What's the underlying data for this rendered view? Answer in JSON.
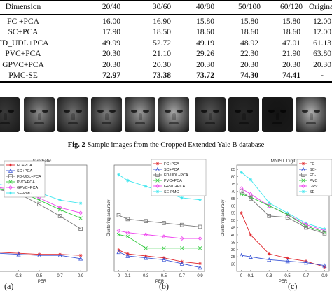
{
  "table": {
    "header": [
      "Dimension",
      "20/40",
      "30/60",
      "40/80",
      "50/100",
      "60/120",
      "Original"
    ],
    "rows": [
      {
        "method": "FC +PCA",
        "values": [
          "16.00",
          "16.90",
          "15.80",
          "15.80",
          "15.80",
          "12.00"
        ]
      },
      {
        "method": "SC+PCA",
        "values": [
          "17.90",
          "18.50",
          "18.60",
          "18.60",
          "18.60",
          "12.00"
        ]
      },
      {
        "method": "FD_UDL+PCA",
        "values": [
          "49.99",
          "52.72",
          "49.19",
          "48.92",
          "47.01",
          "61.13"
        ]
      },
      {
        "method": "PVC+PCA",
        "values": [
          "20.30",
          "21.10",
          "29.26",
          "22.30",
          "21.90",
          "63.80"
        ]
      },
      {
        "method": "GPVC+PCA",
        "values": [
          "20.30",
          "20.30",
          "20.30",
          "20.30",
          "20.30",
          "20.30"
        ]
      },
      {
        "method": "PMC-SE",
        "values": [
          "72.97",
          "73.38",
          "73.72",
          "74.30",
          "74.41",
          "-"
        ]
      }
    ]
  },
  "figure2": {
    "caption_label": "Fig. 2",
    "caption_text": " Sample images from the Cropped Extended Yale B database",
    "faces": [
      {
        "left": -14,
        "width": 42,
        "tone": "#3a3a3a"
      },
      {
        "left": 34,
        "width": 44,
        "tone": "#8a8a8a"
      },
      {
        "left": 82,
        "width": 44,
        "tone": "#6e6e6e"
      },
      {
        "left": 130,
        "width": 44,
        "tone": "#7c7c7c"
      },
      {
        "left": 178,
        "width": 44,
        "tone": "#9a9a9a"
      },
      {
        "left": 226,
        "width": 44,
        "tone": "#a8a8a8"
      },
      {
        "left": 278,
        "width": 44,
        "tone": "#555555"
      },
      {
        "left": 326,
        "width": 44,
        "tone": "#262626"
      },
      {
        "left": 374,
        "width": 44,
        "tone": "#141414"
      },
      {
        "left": 422,
        "width": 44,
        "tone": "#b0b0b0"
      }
    ]
  },
  "series_styles": {
    "FC+PCA": {
      "color": "#e0242a",
      "marker": "star"
    },
    "SC+PCA": {
      "color": "#3a55d6",
      "marker": "triangle"
    },
    "FD-UDL+PCA": {
      "color": "#777777",
      "marker": "square"
    },
    "PVC+PCA": {
      "color": "#2ec93a",
      "marker": "x"
    },
    "GPVC+PCA": {
      "color": "#ee44ee",
      "marker": "diamond"
    },
    "SE-PMC": {
      "color": "#3fe6ee",
      "marker": "star"
    }
  },
  "chart_data": [
    {
      "type": "line",
      "title": "Synthetic",
      "xlabel": "PER",
      "ylabel": "",
      "sub_label": "(a)",
      "x_ticks": [
        "0.3",
        "0.5",
        "0.7",
        "0.9"
      ],
      "x": [
        0.1,
        0.3,
        0.5,
        0.7,
        0.9
      ],
      "ylim": [
        0,
        100
      ],
      "legend": [
        "FC+PCA",
        "SC+PCA",
        "FD-UDL+PCA",
        "PVC+PCA",
        "GPVC+PCA",
        "SE-PMC"
      ],
      "series": [
        {
          "name": "SE-PMC",
          "values": [
            82,
            79,
            74,
            67,
            64
          ]
        },
        {
          "name": "GPVC+PCA",
          "values": [
            79,
            76,
            69,
            60,
            55
          ]
        },
        {
          "name": "PVC+PCA",
          "values": [
            78,
            75,
            67,
            58,
            50
          ]
        },
        {
          "name": "FD-UDL+PCA",
          "values": [
            77,
            73,
            63,
            52,
            40
          ]
        },
        {
          "name": "FC+PCA",
          "values": [
            18,
            17,
            16,
            16,
            15
          ]
        },
        {
          "name": "SC+PCA",
          "values": [
            17,
            16,
            15,
            15,
            12
          ]
        }
      ]
    },
    {
      "type": "line",
      "title": "Yale B",
      "xlabel": "PER",
      "ylabel": "Clustering accuracy",
      "sub_label": "(b)",
      "x_ticks": [
        "0",
        "0.1",
        "0.3",
        "0.5",
        "0.7",
        "0.9"
      ],
      "x": [
        0,
        0.1,
        0.3,
        0.5,
        0.7,
        0.9
      ],
      "ylim": [
        10,
        65
      ],
      "legend": [
        "FC+PCA",
        "SC+PCA",
        "FD-UDL+PCA",
        "PVC+PCA",
        "GPVC+PCA",
        "SE-PMC"
      ],
      "series": [
        {
          "name": "SE-PMC",
          "values": [
            60,
            57,
            54,
            51,
            48,
            47
          ]
        },
        {
          "name": "FD-UDL+PCA",
          "values": [
            39,
            37,
            36,
            35,
            34,
            33
          ]
        },
        {
          "name": "GPVC+PCA",
          "values": [
            31,
            30,
            29,
            28,
            27,
            27
          ]
        },
        {
          "name": "PVC+PCA",
          "values": [
            29,
            28,
            22,
            22,
            22,
            22
          ]
        },
        {
          "name": "FC+PCA",
          "values": [
            21,
            19,
            18,
            17,
            15,
            14
          ]
        },
        {
          "name": "SC+PCA",
          "values": [
            20,
            18,
            17,
            16,
            14,
            12
          ]
        }
      ]
    },
    {
      "type": "line",
      "title": "MNIST Digit",
      "xlabel": "PER",
      "ylabel": "Clustering accuracy",
      "sub_label": "(c)",
      "x_ticks": [
        "0",
        "0.1",
        "0.3",
        "0.5",
        "0.7",
        "0.9"
      ],
      "x": [
        0,
        0.1,
        0.3,
        0.5,
        0.7,
        0.9
      ],
      "y_ticks": [
        "20",
        "25",
        "30",
        "35",
        "40",
        "45",
        "50",
        "55",
        "60",
        "65",
        "70",
        "75",
        "80",
        "85"
      ],
      "ylim": [
        15,
        88
      ],
      "legend": [
        "FC-",
        "SC-",
        "FD-",
        "PVC",
        "GPV",
        "SE-"
      ],
      "series": [
        {
          "name": "SE-PMC",
          "values": [
            83,
            78,
            62,
            55,
            48,
            44
          ]
        },
        {
          "name": "GPVC+PCA",
          "values": [
            72,
            68,
            60,
            54,
            47,
            43
          ]
        },
        {
          "name": "PVC+PCA",
          "values": [
            68,
            66,
            60,
            54,
            46,
            42
          ]
        },
        {
          "name": "FD-UDL+PCA",
          "values": [
            70,
            65,
            53,
            52,
            45,
            41
          ]
        },
        {
          "name": "FC+PCA",
          "values": [
            55,
            40,
            27,
            24,
            22,
            18
          ]
        },
        {
          "name": "SC+PCA",
          "values": [
            26,
            25,
            23,
            22,
            21,
            19
          ]
        }
      ]
    }
  ]
}
